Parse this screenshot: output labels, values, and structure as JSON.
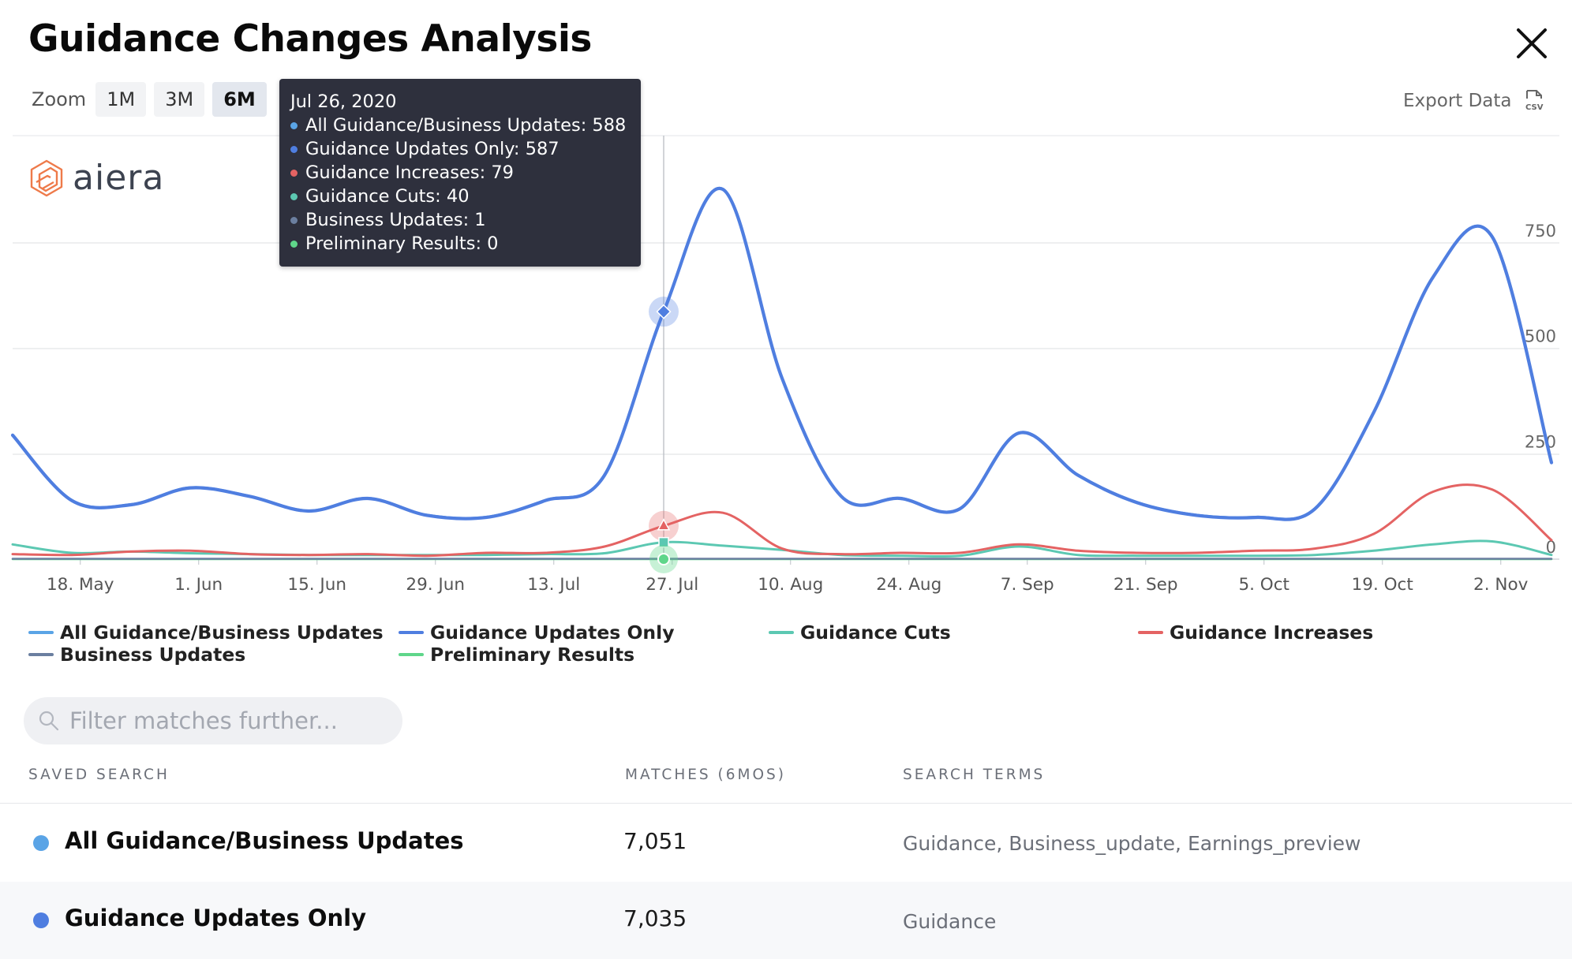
{
  "header": {
    "title": "Guidance Changes Analysis"
  },
  "zoom": {
    "label": "Zoom",
    "options": [
      "1M",
      "3M",
      "6M"
    ],
    "selected": "6M"
  },
  "export": {
    "label": "Export Data",
    "icon": "csv-file-icon"
  },
  "logo": {
    "text": "aiera"
  },
  "tooltip": {
    "date": "Jul 26, 2020",
    "rows": [
      {
        "label": "All Guidance/Business Updates: 588",
        "color": "#5aa4e6"
      },
      {
        "label": "Guidance Updates Only: 587",
        "color": "#4f7ee0"
      },
      {
        "label": "Guidance Increases: 79",
        "color": "#e46363"
      },
      {
        "label": "Guidance Cuts: 40",
        "color": "#5cc8b2"
      },
      {
        "label": "Business Updates: 1",
        "color": "#6b7fa0"
      },
      {
        "label": "Preliminary Results: 0",
        "color": "#5fd68a"
      }
    ]
  },
  "chart_data": {
    "type": "line",
    "x_ticks": [
      "18. May",
      "1. Jun",
      "15. Jun",
      "29. Jun",
      "13. Jul",
      "27. Jul",
      "10. Aug",
      "24. Aug",
      "7. Sep",
      "21. Sep",
      "5. Oct",
      "19. Oct",
      "2. Nov"
    ],
    "y_ticks": [
      "0",
      "250",
      "500",
      "750"
    ],
    "ylim": [
      0,
      1000
    ],
    "grid": true,
    "legend_position": "bottom",
    "x": [
      "2020-05-10",
      "2020-05-17",
      "2020-05-24",
      "2020-05-31",
      "2020-06-07",
      "2020-06-14",
      "2020-06-21",
      "2020-06-28",
      "2020-07-05",
      "2020-07-12",
      "2020-07-19",
      "2020-07-26",
      "2020-08-02",
      "2020-08-09",
      "2020-08-16",
      "2020-08-23",
      "2020-08-30",
      "2020-09-06",
      "2020-09-13",
      "2020-09-20",
      "2020-09-27",
      "2020-10-04",
      "2020-10-11",
      "2020-10-18",
      "2020-10-25",
      "2020-11-01",
      "2020-11-08"
    ],
    "series": [
      {
        "name": "All Guidance/Business Updates",
        "color": "#5aa4e6",
        "values": [
          295,
          140,
          130,
          170,
          150,
          115,
          145,
          105,
          100,
          140,
          200,
          588,
          878,
          430,
          150,
          145,
          120,
          300,
          200,
          135,
          105,
          100,
          120,
          350,
          670,
          765,
          230
        ]
      },
      {
        "name": "Guidance Updates Only",
        "color": "#4f7ee0",
        "values": [
          294,
          139,
          129,
          169,
          149,
          114,
          144,
          104,
          99,
          139,
          199,
          587,
          877,
          429,
          149,
          144,
          119,
          299,
          199,
          134,
          104,
          99,
          119,
          349,
          669,
          764,
          229
        ]
      },
      {
        "name": "Guidance Cuts",
        "color": "#5cc8b2",
        "values": [
          35,
          15,
          18,
          14,
          12,
          10,
          10,
          10,
          10,
          12,
          14,
          40,
          32,
          22,
          10,
          8,
          8,
          30,
          10,
          8,
          8,
          8,
          10,
          20,
          35,
          42,
          10
        ]
      },
      {
        "name": "Guidance Increases",
        "color": "#e46363",
        "values": [
          12,
          10,
          18,
          20,
          12,
          10,
          12,
          8,
          15,
          15,
          30,
          79,
          110,
          25,
          12,
          15,
          15,
          35,
          20,
          15,
          15,
          20,
          25,
          60,
          160,
          165,
          45
        ]
      },
      {
        "name": "Business Updates",
        "color": "#6b7fa0",
        "values": [
          1,
          1,
          1,
          1,
          1,
          1,
          1,
          1,
          1,
          1,
          1,
          1,
          1,
          1,
          1,
          1,
          1,
          1,
          1,
          1,
          1,
          1,
          1,
          1,
          1,
          1,
          1
        ]
      },
      {
        "name": "Preliminary Results",
        "color": "#5fd68a",
        "values": [
          0,
          0,
          0,
          0,
          0,
          0,
          0,
          0,
          0,
          0,
          0,
          0,
          0,
          0,
          0,
          0,
          0,
          0,
          0,
          0,
          0,
          0,
          0,
          0,
          0,
          0,
          0
        ]
      }
    ]
  },
  "filter": {
    "placeholder": "Filter matches further..."
  },
  "table": {
    "headers": {
      "name": "Saved Search",
      "matches": "Matches (6mos)",
      "terms": "Search Terms"
    },
    "rows": [
      {
        "name": "All Guidance/Business Updates",
        "matches": "7,051",
        "terms": "Guidance, Business_update, Earnings_preview",
        "color": "#5aa4e6"
      },
      {
        "name": "Guidance Updates Only",
        "matches": "7,035",
        "terms": "Guidance",
        "color": "#4f7ee0"
      }
    ]
  }
}
